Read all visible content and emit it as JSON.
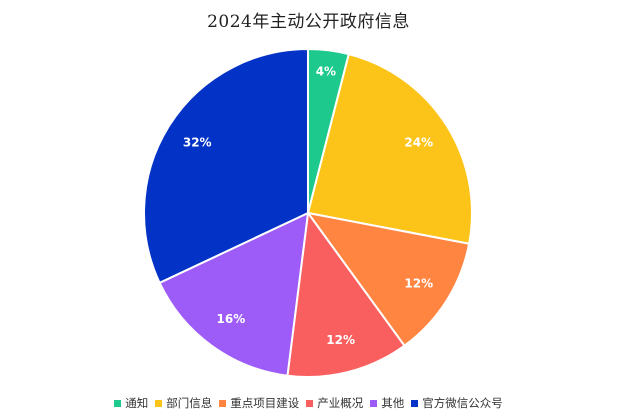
{
  "chart_data": {
    "type": "pie",
    "title": "2024年主动公开政府信息",
    "categories": [
      "通知",
      "部门信息",
      "重点项目建设",
      "产业概况",
      "其他",
      "官方微信公众号"
    ],
    "values": [
      4,
      24,
      12,
      12,
      16,
      32
    ],
    "labels": [
      "4%",
      "24%",
      "12%",
      "12%",
      "16%",
      "32%"
    ],
    "colors": [
      "#1ec98d",
      "#fcc419",
      "#ff8540",
      "#fa5f5f",
      "#9d5cf7",
      "#0333c6"
    ],
    "start_angle": "12 o'clock",
    "direction": "clockwise",
    "legend_position": "bottom"
  }
}
